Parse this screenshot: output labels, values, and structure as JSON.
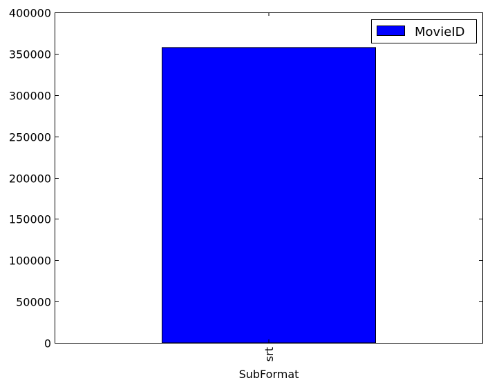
{
  "chart_data": {
    "type": "bar",
    "categories": [
      "srt"
    ],
    "series": [
      {
        "name": "MovieID",
        "values": [
          357500
        ]
      }
    ],
    "xlabel": "SubFormat",
    "ylabel": "",
    "ylim": [
      0,
      400000
    ],
    "yticks": [
      "0",
      "50000",
      "100000",
      "150000",
      "200000",
      "250000",
      "300000",
      "350000",
      "400000"
    ],
    "grid": false,
    "legend_position": "top-right",
    "bar_color": "#0000ff",
    "edge_color": "#000000"
  }
}
